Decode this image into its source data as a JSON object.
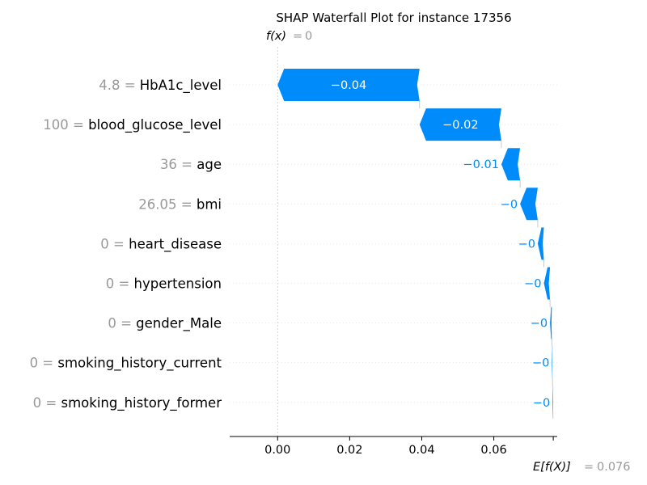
{
  "chart_data": {
    "type": "waterfall",
    "title": "SHAP Waterfall Plot for instance 17356",
    "fx_label": "f(x)",
    "fx_value": "0",
    "fx_value_num": 0.0,
    "ex_label": "E[f(X)]",
    "ex_value": "0.076",
    "ex_value_num": 0.0765,
    "xlim": [
      -0.0133,
      0.0776
    ],
    "x_ticks": [
      {
        "value": 0.0,
        "label": "0.00"
      },
      {
        "value": 0.02,
        "label": "0.02"
      },
      {
        "value": 0.04,
        "label": "0.04"
      },
      {
        "value": 0.06,
        "label": "0.06"
      }
    ],
    "features": [
      {
        "value_label": "4.8",
        "name": "HbA1c_level",
        "shap": -0.0394,
        "label": "−0.04"
      },
      {
        "value_label": "100",
        "name": "blood_glucose_level",
        "shap": -0.0227,
        "label": "−0.02"
      },
      {
        "value_label": "36",
        "name": "age",
        "shap": -0.0052,
        "label": "−0.01"
      },
      {
        "value_label": "26.05",
        "name": "bmi",
        "shap": -0.0049,
        "label": "−0"
      },
      {
        "value_label": "0",
        "name": "heart_disease",
        "shap": -0.0017,
        "label": "−0"
      },
      {
        "value_label": "0",
        "name": "hypertension",
        "shap": -0.0017,
        "label": "−0"
      },
      {
        "value_label": "0",
        "name": "gender_Male",
        "shap": -0.0005,
        "label": "−0"
      },
      {
        "value_label": "0",
        "name": "smoking_history_current",
        "shap": -0.0002,
        "label": "−0"
      },
      {
        "value_label": "0",
        "name": "smoking_history_former",
        "shap": -0.0002,
        "label": "−0"
      }
    ],
    "colors": {
      "negative": "#008bfb",
      "value_text": "#999999",
      "name_text": "#000000",
      "gridline": "#cccccc"
    }
  }
}
